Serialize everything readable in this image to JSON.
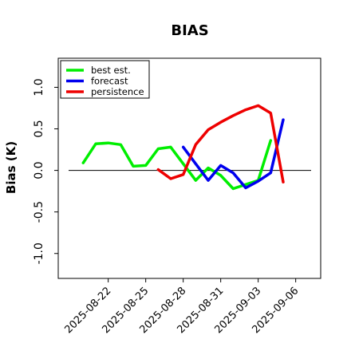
{
  "chart_data": {
    "type": "line",
    "title": "BIAS",
    "xlabel": "",
    "ylabel": "Bias (K)",
    "ylim": [
      -1.3,
      1.35
    ],
    "xlim": [
      "2025-08-18",
      "2025-09-08"
    ],
    "yticks": [
      -1.0,
      -0.5,
      0.0,
      0.5,
      1.0
    ],
    "ytick_labels": [
      "-1.0",
      "-0.5",
      "0.0",
      "0.5",
      "1.0"
    ],
    "xticks": [
      "2025-08-22",
      "2025-08-25",
      "2025-08-28",
      "2025-08-31",
      "2025-09-03",
      "2025-09-06"
    ],
    "xtick_labels": [
      {
        "text": "2025-08-22",
        "color": "#000000"
      },
      {
        "text": "2025-08-25",
        "color": "#000000"
      },
      {
        "text": "2025-08-28",
        "color": "#228b22"
      },
      {
        "text": "2025-08-31",
        "color": "#000000"
      },
      {
        "text": "2025-09-03",
        "color": "#000000"
      },
      {
        "text": "2025-09-06",
        "color": "#000000"
      }
    ],
    "zero_line": 0,
    "grid": false,
    "legend_position": "top-left",
    "series": [
      {
        "name": "best est.",
        "color": "#00ee00",
        "x": [
          "2025-08-20",
          "2025-08-21",
          "2025-08-22",
          "2025-08-23",
          "2025-08-24",
          "2025-08-25",
          "2025-08-26",
          "2025-08-27",
          "2025-08-28",
          "2025-08-29",
          "2025-08-30",
          "2025-08-31",
          "2025-09-01",
          "2025-09-02",
          "2025-09-03",
          "2025-09-04",
          "2025-09-05"
        ],
        "y": [
          0.09,
          0.32,
          0.33,
          0.31,
          0.05,
          0.06,
          0.26,
          0.28,
          0.08,
          -0.12,
          0.03,
          -0.06,
          -0.22,
          -0.17,
          -0.12,
          0.36,
          null
        ]
      },
      {
        "name": "forecast",
        "color": "#0000ee",
        "x": [
          "2025-08-28",
          "2025-08-29",
          "2025-08-30",
          "2025-08-31",
          "2025-09-01",
          "2025-09-02",
          "2025-09-03",
          "2025-09-04",
          "2025-09-05"
        ],
        "y": [
          0.28,
          0.08,
          -0.12,
          0.06,
          -0.03,
          -0.21,
          -0.13,
          -0.03,
          0.61
        ]
      },
      {
        "name": "persistence",
        "color": "#ee0000",
        "x": [
          "2025-08-26",
          "2025-08-27",
          "2025-08-28",
          "2025-08-29",
          "2025-08-30",
          "2025-08-31",
          "2025-09-01",
          "2025-09-02",
          "2025-09-03",
          "2025-09-04",
          "2025-09-05"
        ],
        "y": [
          0.01,
          -0.1,
          -0.05,
          0.31,
          0.49,
          0.58,
          0.66,
          0.73,
          0.78,
          0.69,
          -0.14
        ]
      }
    ]
  }
}
